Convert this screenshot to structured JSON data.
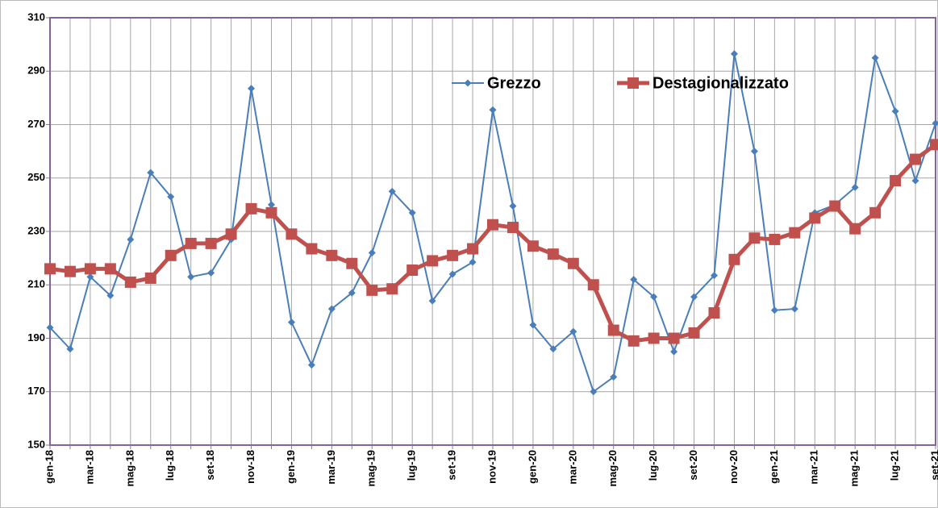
{
  "chart_data": {
    "type": "line",
    "categories": [
      "gen-18",
      null,
      "mar-18",
      null,
      "mag-18",
      null,
      "lug-18",
      null,
      "set-18",
      null,
      "nov-18",
      null,
      "gen-19",
      null,
      "mar-19",
      null,
      "mag-19",
      null,
      "lug-19",
      null,
      "set-19",
      null,
      "nov-19",
      null,
      "gen-20",
      null,
      "mar-20",
      null,
      "mag-20",
      null,
      "lug-20",
      null,
      "set-20",
      null,
      "nov-20",
      null,
      "gen-21",
      null,
      "mar-21",
      null,
      "mag-21",
      null,
      "lug-21",
      null,
      "set-21"
    ],
    "series": [
      {
        "name": "Grezzo",
        "color": "#4a7ebb",
        "marker": "diamond",
        "values": [
          194,
          186,
          213,
          206,
          227,
          252,
          243,
          213,
          214.5,
          227,
          283.5,
          240,
          196,
          180,
          201,
          207,
          222,
          245,
          237,
          204,
          214,
          218.5,
          275.5,
          239.5,
          195,
          186,
          192.5,
          170,
          175.5,
          212,
          205.5,
          185,
          205.5,
          213.5,
          296.5,
          260,
          200.5,
          201,
          237,
          240,
          246.5,
          295,
          275,
          249,
          270.5
        ]
      },
      {
        "name": "Destagionalizzato",
        "color": "#c0504d",
        "marker": "square",
        "values": [
          216,
          215,
          216,
          216,
          211,
          212.5,
          221,
          225.5,
          225.5,
          229,
          238.5,
          237,
          229,
          223.5,
          221,
          218,
          208,
          208.5,
          215.5,
          219,
          221,
          223.5,
          232.5,
          231.5,
          224.5,
          221.5,
          218,
          210,
          193,
          189,
          190,
          190,
          192,
          199.5,
          219.5,
          227.5,
          227,
          229.5,
          235,
          239.5,
          231,
          237,
          249,
          257,
          262.5
        ]
      }
    ],
    "ylim": [
      150,
      310
    ],
    "yticks": [
      150,
      170,
      190,
      210,
      230,
      250,
      270,
      290,
      310
    ],
    "grid": true,
    "legend": "top"
  }
}
